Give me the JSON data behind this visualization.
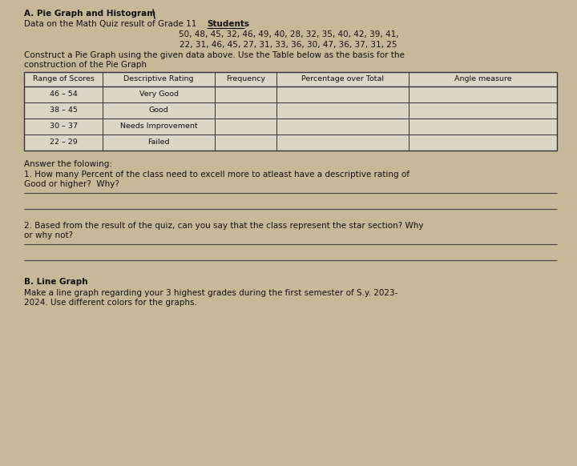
{
  "bg_color": "#c8b89a",
  "title": "A. Pie Graph and Histogram",
  "line1_pre": "Data on the Math Quiz result of Grade 11 ",
  "line1_bold": "Students",
  "line2": "50, 48, 45, 32, 46, 49, 40, 28, 32, 35, 40, 42, 39, 41,",
  "line3": "22, 31, 46, 45, 27, 31, 33, 36, 30, 47, 36, 37, 31, 25",
  "line4": "Construct a Pie Graph using the given data above. Use the Table below as the basis for the",
  "line5": "construction of the Pie Graph",
  "table_headers": [
    "Range of Scores",
    "Descriptive Rating",
    "Frequency",
    "Percentage over Total",
    "Angle measure"
  ],
  "table_rows": [
    [
      "46 – 54",
      "Very Good",
      "",
      "",
      ""
    ],
    [
      "38 – 45",
      "Good",
      "",
      "",
      ""
    ],
    [
      "30 – 37",
      "Needs Improvement",
      "",
      "",
      ""
    ],
    [
      "22 – 29",
      "Failed",
      "",
      "",
      ""
    ]
  ],
  "answer_header": "Answer the folowing:",
  "q1_line1": "1. How many Percent of the class need to excell more to atleast have a descriptive rating of",
  "q1_line2": "Good or higher?  Why?",
  "q2_line1": "2. Based from the result of the quiz, can you say that the class represent the star section? Why",
  "q2_line2": "or why not?",
  "section_b_title": "B. Line Graph",
  "section_b_line1": "Make a line graph regarding your 3 highest grades during the first semester of S.y. 2023-",
  "section_b_line2": "2024. Use different colors for the graphs.",
  "fs": 7.5,
  "fs_bold": 7.5,
  "table_bg": "#ddd5c5",
  "table_border": "#333333",
  "line_color": "#555555"
}
